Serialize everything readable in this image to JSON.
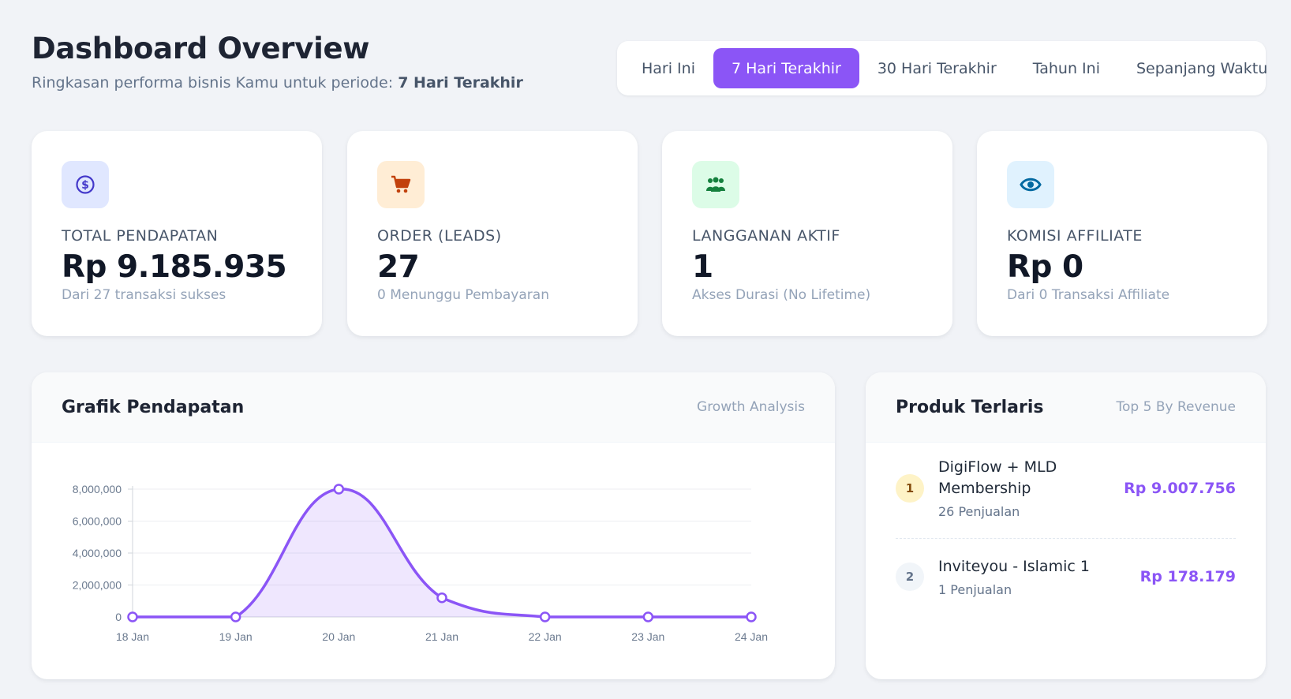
{
  "header": {
    "title": "Dashboard Overview",
    "subtitle_prefix": "Ringkasan performa bisnis Kamu untuk periode:",
    "subtitle_period": "7 Hari Terakhir"
  },
  "period_tabs": [
    {
      "label": "Hari Ini",
      "active": false
    },
    {
      "label": "7 Hari Terakhir",
      "active": true
    },
    {
      "label": "30 Hari Terakhir",
      "active": false
    },
    {
      "label": "Tahun Ini",
      "active": false
    },
    {
      "label": "Sepanjang Waktu",
      "active": false
    }
  ],
  "stats": [
    {
      "icon": "dollar-circle-icon",
      "label": "TOTAL PENDAPATAN",
      "value": "Rp 9.185.935",
      "sub": "Dari 27 transaksi sukses",
      "accent": "#4338ca",
      "bg": "#e0e7ff"
    },
    {
      "icon": "cart-icon",
      "label": "ORDER (LEADS)",
      "value": "27",
      "sub": "0 Menunggu Pembayaran",
      "accent": "#c2410c",
      "bg": "#ffedd5"
    },
    {
      "icon": "users-icon",
      "label": "LANGGANAN AKTIF",
      "value": "1",
      "sub": "Akses Durasi (No Lifetime)",
      "accent": "#15803d",
      "bg": "#dcfce7"
    },
    {
      "icon": "eye-icon",
      "label": "KOMISI AFFILIATE",
      "value": "Rp 0",
      "sub": "Dari 0 Transaksi Affiliate",
      "accent": "#0369a1",
      "bg": "#e0f2fe"
    }
  ],
  "revenue_panel": {
    "title": "Grafik Pendapatan",
    "hint": "Growth Analysis"
  },
  "chart_data": {
    "type": "area",
    "x": [
      "18 Jan",
      "19 Jan",
      "20 Jan",
      "21 Jan",
      "22 Jan",
      "23 Jan",
      "24 Jan"
    ],
    "series": [
      {
        "values": [
          0,
          0,
          8000000,
          1200000,
          0,
          0,
          0
        ],
        "color": "#8b55f6"
      }
    ],
    "ylim": [
      0,
      8000000
    ],
    "yticks": [
      "0",
      "2,000,000",
      "4,000,000",
      "6,000,000",
      "8,000,000"
    ],
    "grid": true
  },
  "products_panel": {
    "title": "Produk Terlaris",
    "hint": "Top 5 By Revenue",
    "items": [
      {
        "rank": "1",
        "name": "DigiFlow + MLD Membership",
        "sales": "26 Penjualan",
        "revenue": "Rp 9.007.756"
      },
      {
        "rank": "2",
        "name": "Inviteyou - Islamic 1",
        "sales": "1 Penjualan",
        "revenue": "Rp 178.179"
      }
    ]
  }
}
